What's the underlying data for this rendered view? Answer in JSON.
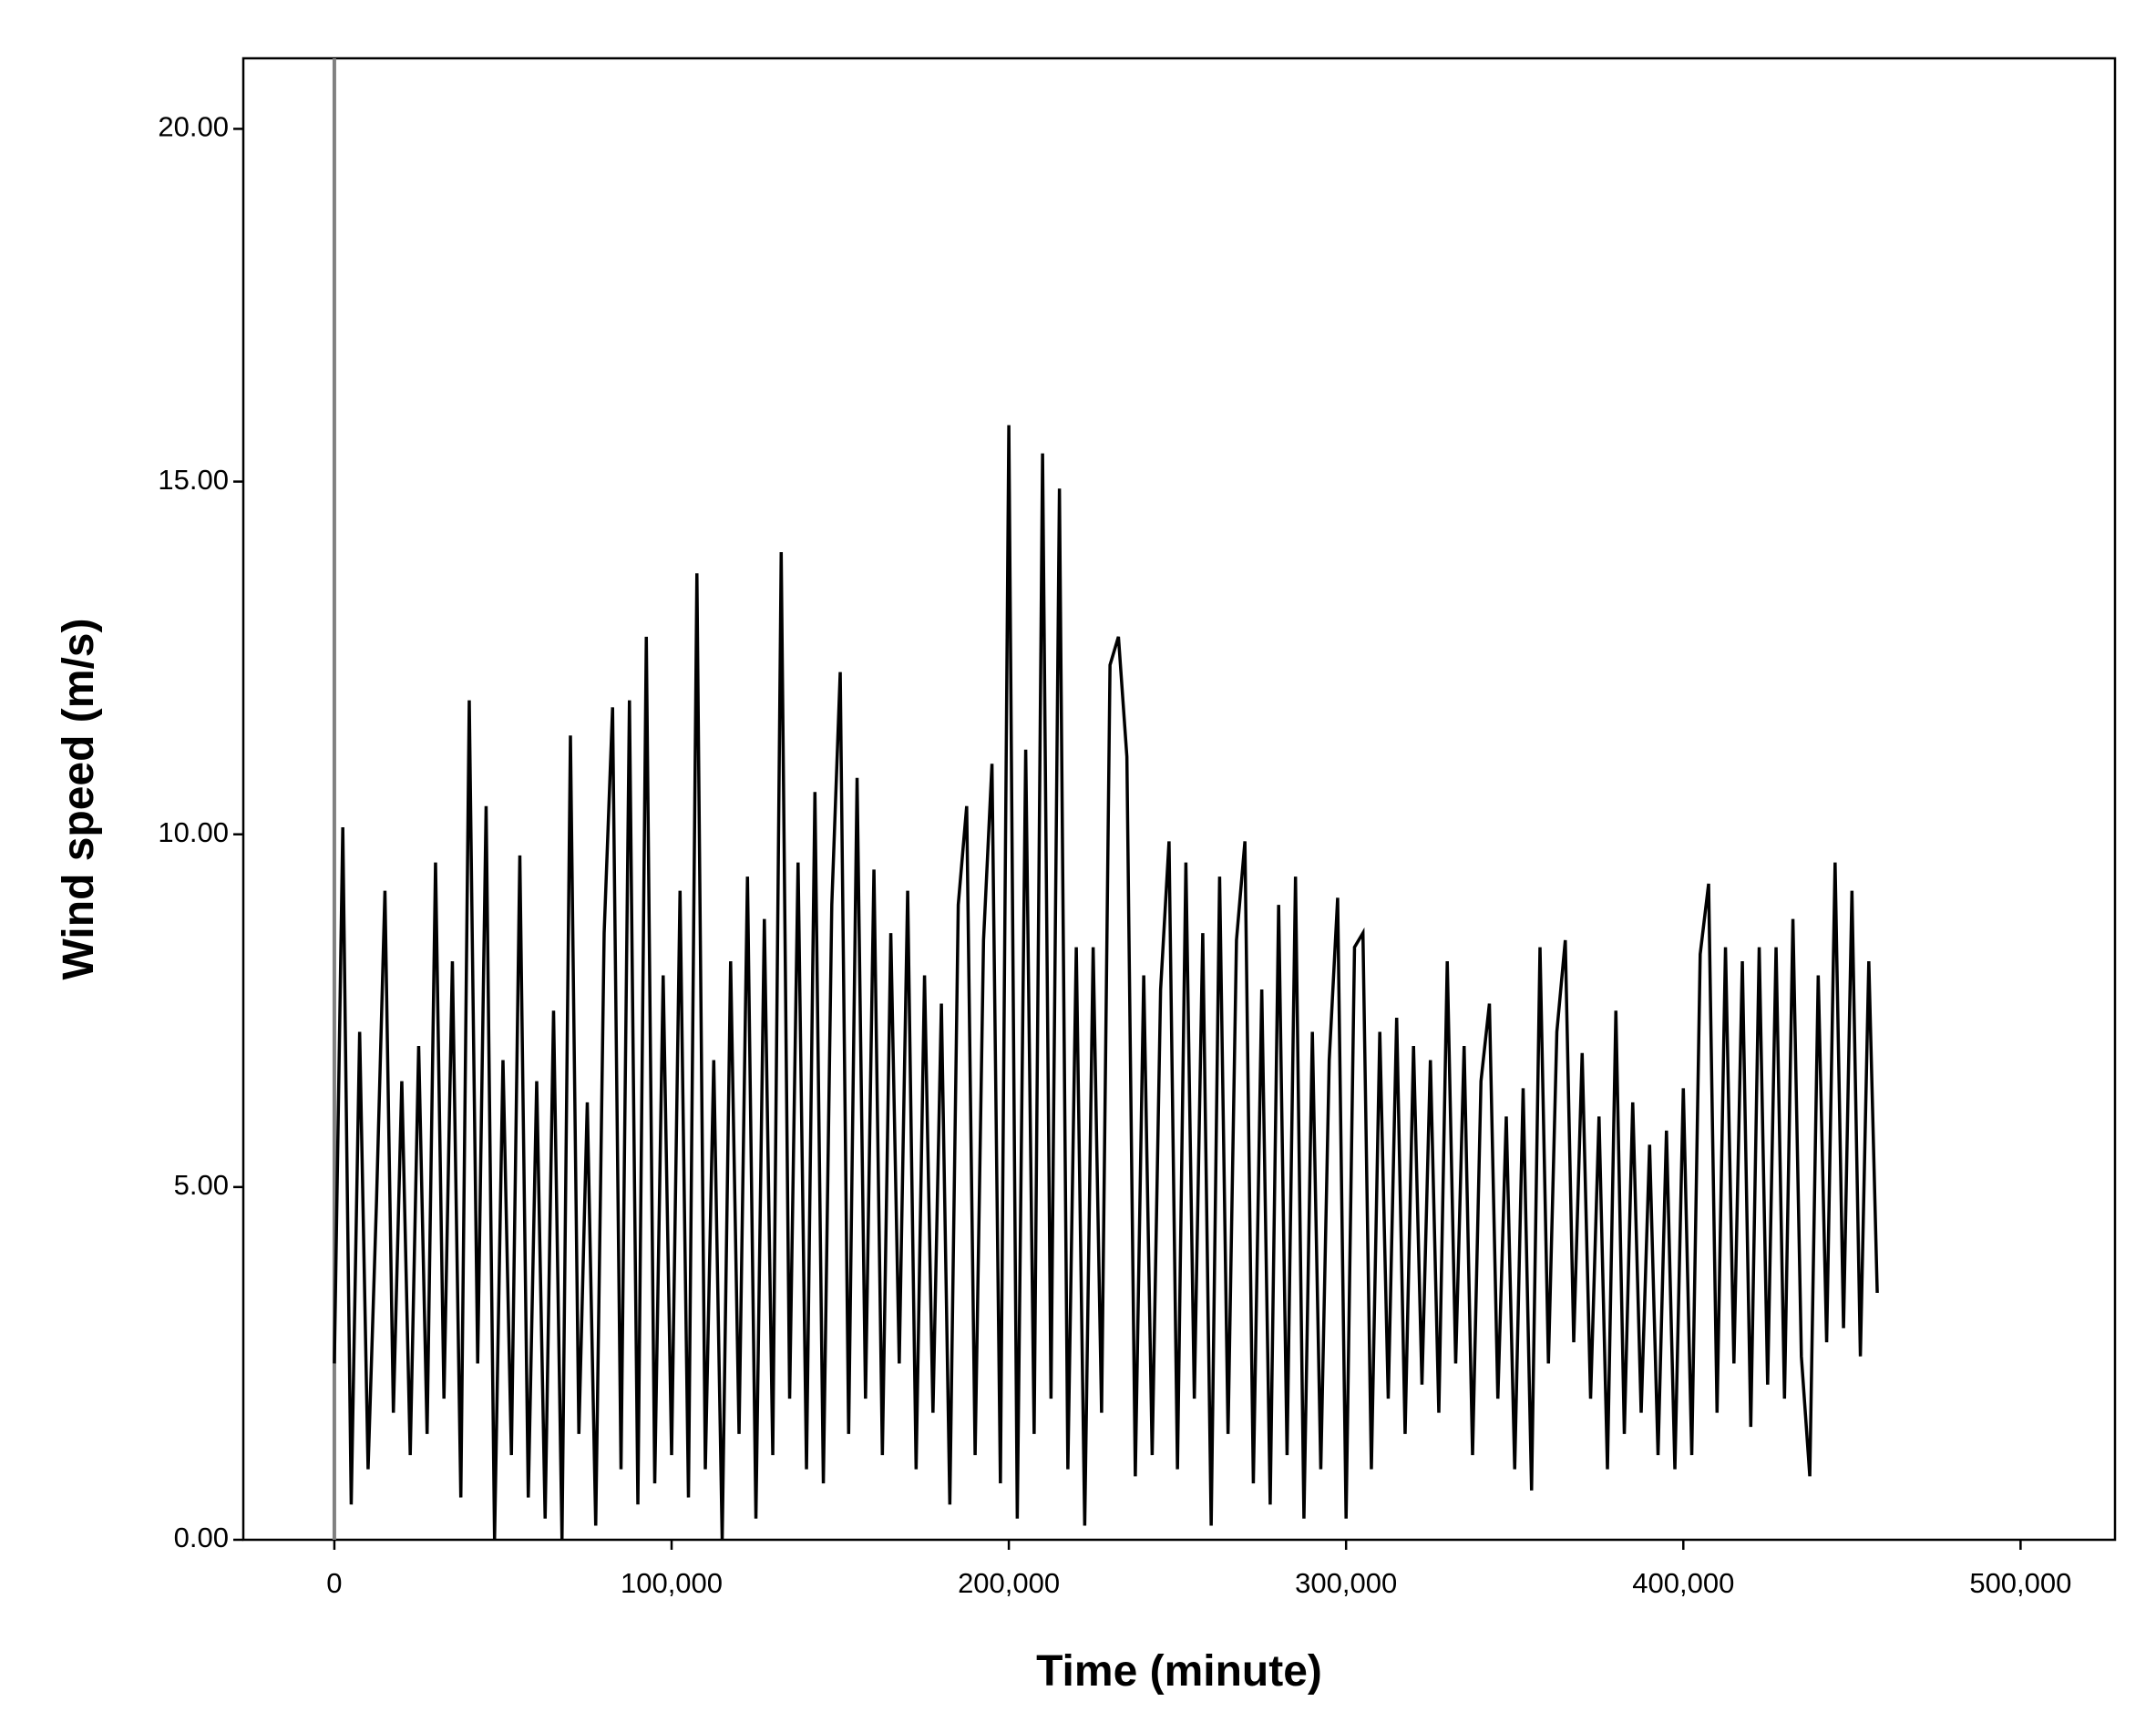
{
  "chart_data": {
    "type": "line",
    "x_label": "Time (minute)",
    "y_label": "Wind speed (m/s)",
    "xlim": [
      -27000,
      528000
    ],
    "ylim": [
      0,
      21
    ],
    "xticks": [
      0,
      {
        "value": 100000,
        "label": "100,000"
      },
      {
        "value": 200000,
        "label": "200,000"
      },
      {
        "value": 300000,
        "label": "300,000"
      },
      {
        "value": 400000,
        "label": "400,000"
      },
      {
        "value": 500000,
        "label": "500,000"
      }
    ],
    "yticks": [
      {
        "value": 0,
        "label": "0.00"
      },
      {
        "value": 5,
        "label": "5.00"
      },
      {
        "value": 10,
        "label": "10.00"
      },
      {
        "value": 15,
        "label": "15.00"
      },
      {
        "value": 20,
        "label": "20.00"
      }
    ],
    "reference_line_x": 0,
    "reference_line_color": "#808080",
    "grid": false,
    "x": [
      0,
      2500,
      5000,
      7500,
      10000,
      12500,
      15000,
      17500,
      20000,
      22500,
      25000,
      27500,
      30000,
      32500,
      35000,
      37500,
      40000,
      42500,
      45000,
      47500,
      50000,
      52500,
      55000,
      57500,
      60000,
      62500,
      65000,
      67500,
      70000,
      72500,
      75000,
      77500,
      80000,
      82500,
      85000,
      87500,
      90000,
      92500,
      95000,
      97500,
      100000,
      102500,
      105000,
      107500,
      110000,
      112500,
      115000,
      117500,
      120000,
      122500,
      125000,
      127500,
      130000,
      132500,
      135000,
      137500,
      140000,
      142500,
      145000,
      147500,
      150000,
      152500,
      155000,
      157500,
      160000,
      162500,
      165000,
      167500,
      170000,
      172500,
      175000,
      177500,
      180000,
      182500,
      185000,
      187500,
      190000,
      192500,
      195000,
      197500,
      200000,
      202500,
      205000,
      207500,
      210000,
      212500,
      215000,
      217500,
      220000,
      222500,
      225000,
      227500,
      230000,
      232500,
      235000,
      237500,
      240000,
      242500,
      245000,
      247500,
      250000,
      252500,
      255000,
      257500,
      260000,
      262500,
      265000,
      267500,
      270000,
      272500,
      275000,
      277500,
      280000,
      282500,
      285000,
      287500,
      290000,
      292500,
      295000,
      297500,
      300000,
      302500,
      305000,
      307500,
      310000,
      312500,
      315000,
      317500,
      320000,
      322500,
      325000,
      327500,
      330000,
      332500,
      335000,
      337500,
      340000,
      342500,
      345000,
      347500,
      350000,
      352500,
      355000,
      357500,
      360000,
      362500,
      365000,
      367500,
      370000,
      372500,
      375000,
      377500,
      380000,
      382500,
      385000,
      387500,
      390000,
      392500,
      395000,
      397500,
      400000,
      402500,
      405000,
      407500,
      410000,
      412500,
      415000,
      417500,
      420000,
      422500,
      425000,
      427500,
      430000,
      432500,
      435000,
      437500,
      440000,
      442500,
      445000,
      447500,
      450000,
      452500,
      455000,
      457500
    ],
    "series": [
      {
        "name": "Wind speed",
        "color": "#000000",
        "values": [
          2.5,
          10.1,
          0.5,
          7.2,
          1.0,
          4.8,
          9.2,
          1.8,
          6.5,
          1.2,
          7.0,
          1.5,
          9.6,
          2.0,
          8.2,
          0.6,
          11.9,
          2.5,
          10.4,
          0.0,
          6.8,
          1.2,
          9.7,
          0.6,
          6.5,
          0.3,
          7.5,
          0.0,
          11.4,
          1.5,
          6.2,
          0.2,
          8.6,
          11.8,
          1.0,
          11.9,
          0.5,
          12.8,
          0.8,
          8.0,
          1.2,
          9.2,
          0.6,
          13.7,
          1.0,
          6.8,
          0.0,
          8.2,
          1.5,
          9.4,
          0.3,
          8.8,
          1.2,
          14.0,
          2.0,
          9.6,
          1.0,
          10.6,
          0.8,
          9.0,
          12.3,
          1.5,
          10.8,
          2.0,
          9.5,
          1.2,
          8.6,
          2.5,
          9.2,
          1.0,
          8.0,
          1.8,
          7.6,
          0.5,
          9.0,
          10.4,
          1.2,
          8.5,
          11.0,
          0.8,
          15.8,
          0.3,
          11.2,
          1.5,
          15.4,
          2.0,
          14.9,
          1.0,
          8.4,
          0.2,
          8.4,
          1.8,
          12.4,
          12.8,
          11.1,
          0.9,
          8.0,
          1.2,
          7.8,
          9.9,
          1.0,
          9.6,
          2.0,
          8.6,
          0.2,
          9.4,
          1.5,
          8.5,
          9.9,
          0.8,
          7.8,
          0.5,
          9.0,
          1.2,
          9.4,
          0.3,
          7.2,
          1.0,
          6.8,
          9.1,
          0.3,
          8.4,
          8.6,
          1.0,
          7.2,
          2.0,
          7.4,
          1.5,
          7.0,
          2.2,
          6.8,
          1.8,
          8.2,
          2.5,
          7.0,
          1.2,
          6.5,
          7.6,
          2.0,
          6.0,
          1.0,
          6.4,
          0.7,
          8.4,
          2.5,
          7.2,
          8.5,
          2.8,
          6.9,
          2.0,
          6.0,
          1.0,
          7.5,
          1.5,
          6.2,
          1.8,
          5.6,
          1.2,
          5.8,
          1.0,
          6.4,
          1.2,
          8.3,
          9.3,
          1.8,
          8.4,
          2.5,
          8.2,
          1.6,
          8.4,
          2.2,
          8.4,
          2.0,
          8.8,
          2.6,
          0.9,
          8.0,
          2.8,
          9.6,
          3.0,
          9.2,
          2.6,
          8.2,
          3.5
        ]
      }
    ]
  }
}
